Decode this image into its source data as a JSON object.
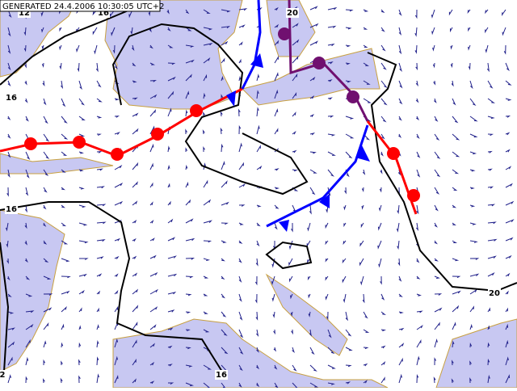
{
  "header": {
    "generated": "GENERATED 24.4.2006 10:30:05 UTC+2"
  },
  "isobar_labels": [
    "12",
    "16",
    "20",
    "16",
    "16",
    "20",
    "2",
    "16"
  ]
}
